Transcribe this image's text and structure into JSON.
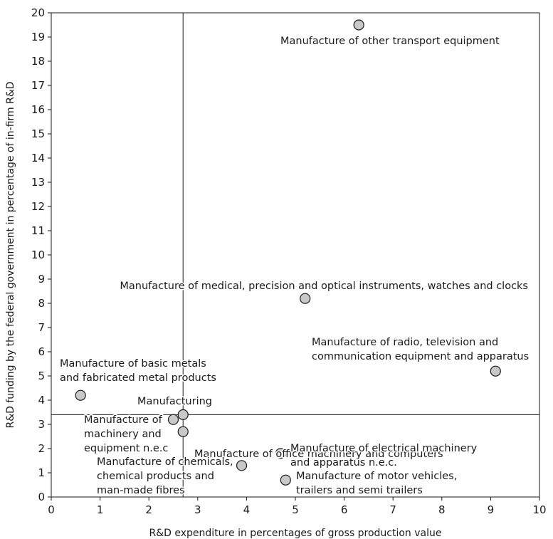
{
  "chart_data": {
    "type": "scatter",
    "title": "",
    "xlabel": "R&D expenditure in percentages of gross production value",
    "ylabel": "R&D funding by the federal government in percentage of in-firm R&D",
    "xlim": [
      0,
      10
    ],
    "ylim": [
      0,
      20
    ],
    "xticks": [
      "0",
      "1",
      "2",
      "3",
      "4",
      "5",
      "6",
      "7",
      "8",
      "9",
      "10"
    ],
    "yticks": [
      "0",
      "1",
      "2",
      "3",
      "4",
      "5",
      "6",
      "7",
      "8",
      "9",
      "10",
      "11",
      "12",
      "13",
      "14",
      "15",
      "16",
      "17",
      "18",
      "19",
      "20"
    ],
    "grid": false,
    "marker_color": "#c8c8c8",
    "reference_lines": {
      "x": 2.7,
      "y": 3.4
    },
    "points": [
      {
        "x": 6.3,
        "y": 19.5,
        "label": [
          "Manufacture of other transport equipment"
        ]
      },
      {
        "x": 5.2,
        "y": 8.2,
        "label": [
          "Manufacture of medical, precision and optical instruments, watches and clocks"
        ]
      },
      {
        "x": 9.1,
        "y": 5.2,
        "label": [
          "Manufacture of radio, television and",
          "communication equipment and apparatus"
        ]
      },
      {
        "x": 0.6,
        "y": 4.2,
        "label": [
          "Manufacture of basic metals",
          "and fabricated metal products"
        ]
      },
      {
        "x": 2.7,
        "y": 3.4,
        "label": [
          "Manufacturing"
        ]
      },
      {
        "x": 2.5,
        "y": 3.2,
        "label": [
          "Manufacture of",
          "machinery and",
          "equipment n.e.c"
        ]
      },
      {
        "x": 2.7,
        "y": 2.7,
        "label": [
          "Manufacture of office machinery and computers"
        ]
      },
      {
        "x": 4.7,
        "y": 1.8,
        "label": [
          "Manufacture of electrical machinery",
          "and apparatus n.e.c."
        ]
      },
      {
        "x": 3.9,
        "y": 1.3,
        "label": [
          "Manufacture of chemicals,",
          "chemical products and",
          "man-made fibres"
        ]
      },
      {
        "x": 4.8,
        "y": 0.7,
        "label": [
          "Manufacture of motor vehicles,",
          "trailers and semi trailers"
        ]
      }
    ]
  }
}
